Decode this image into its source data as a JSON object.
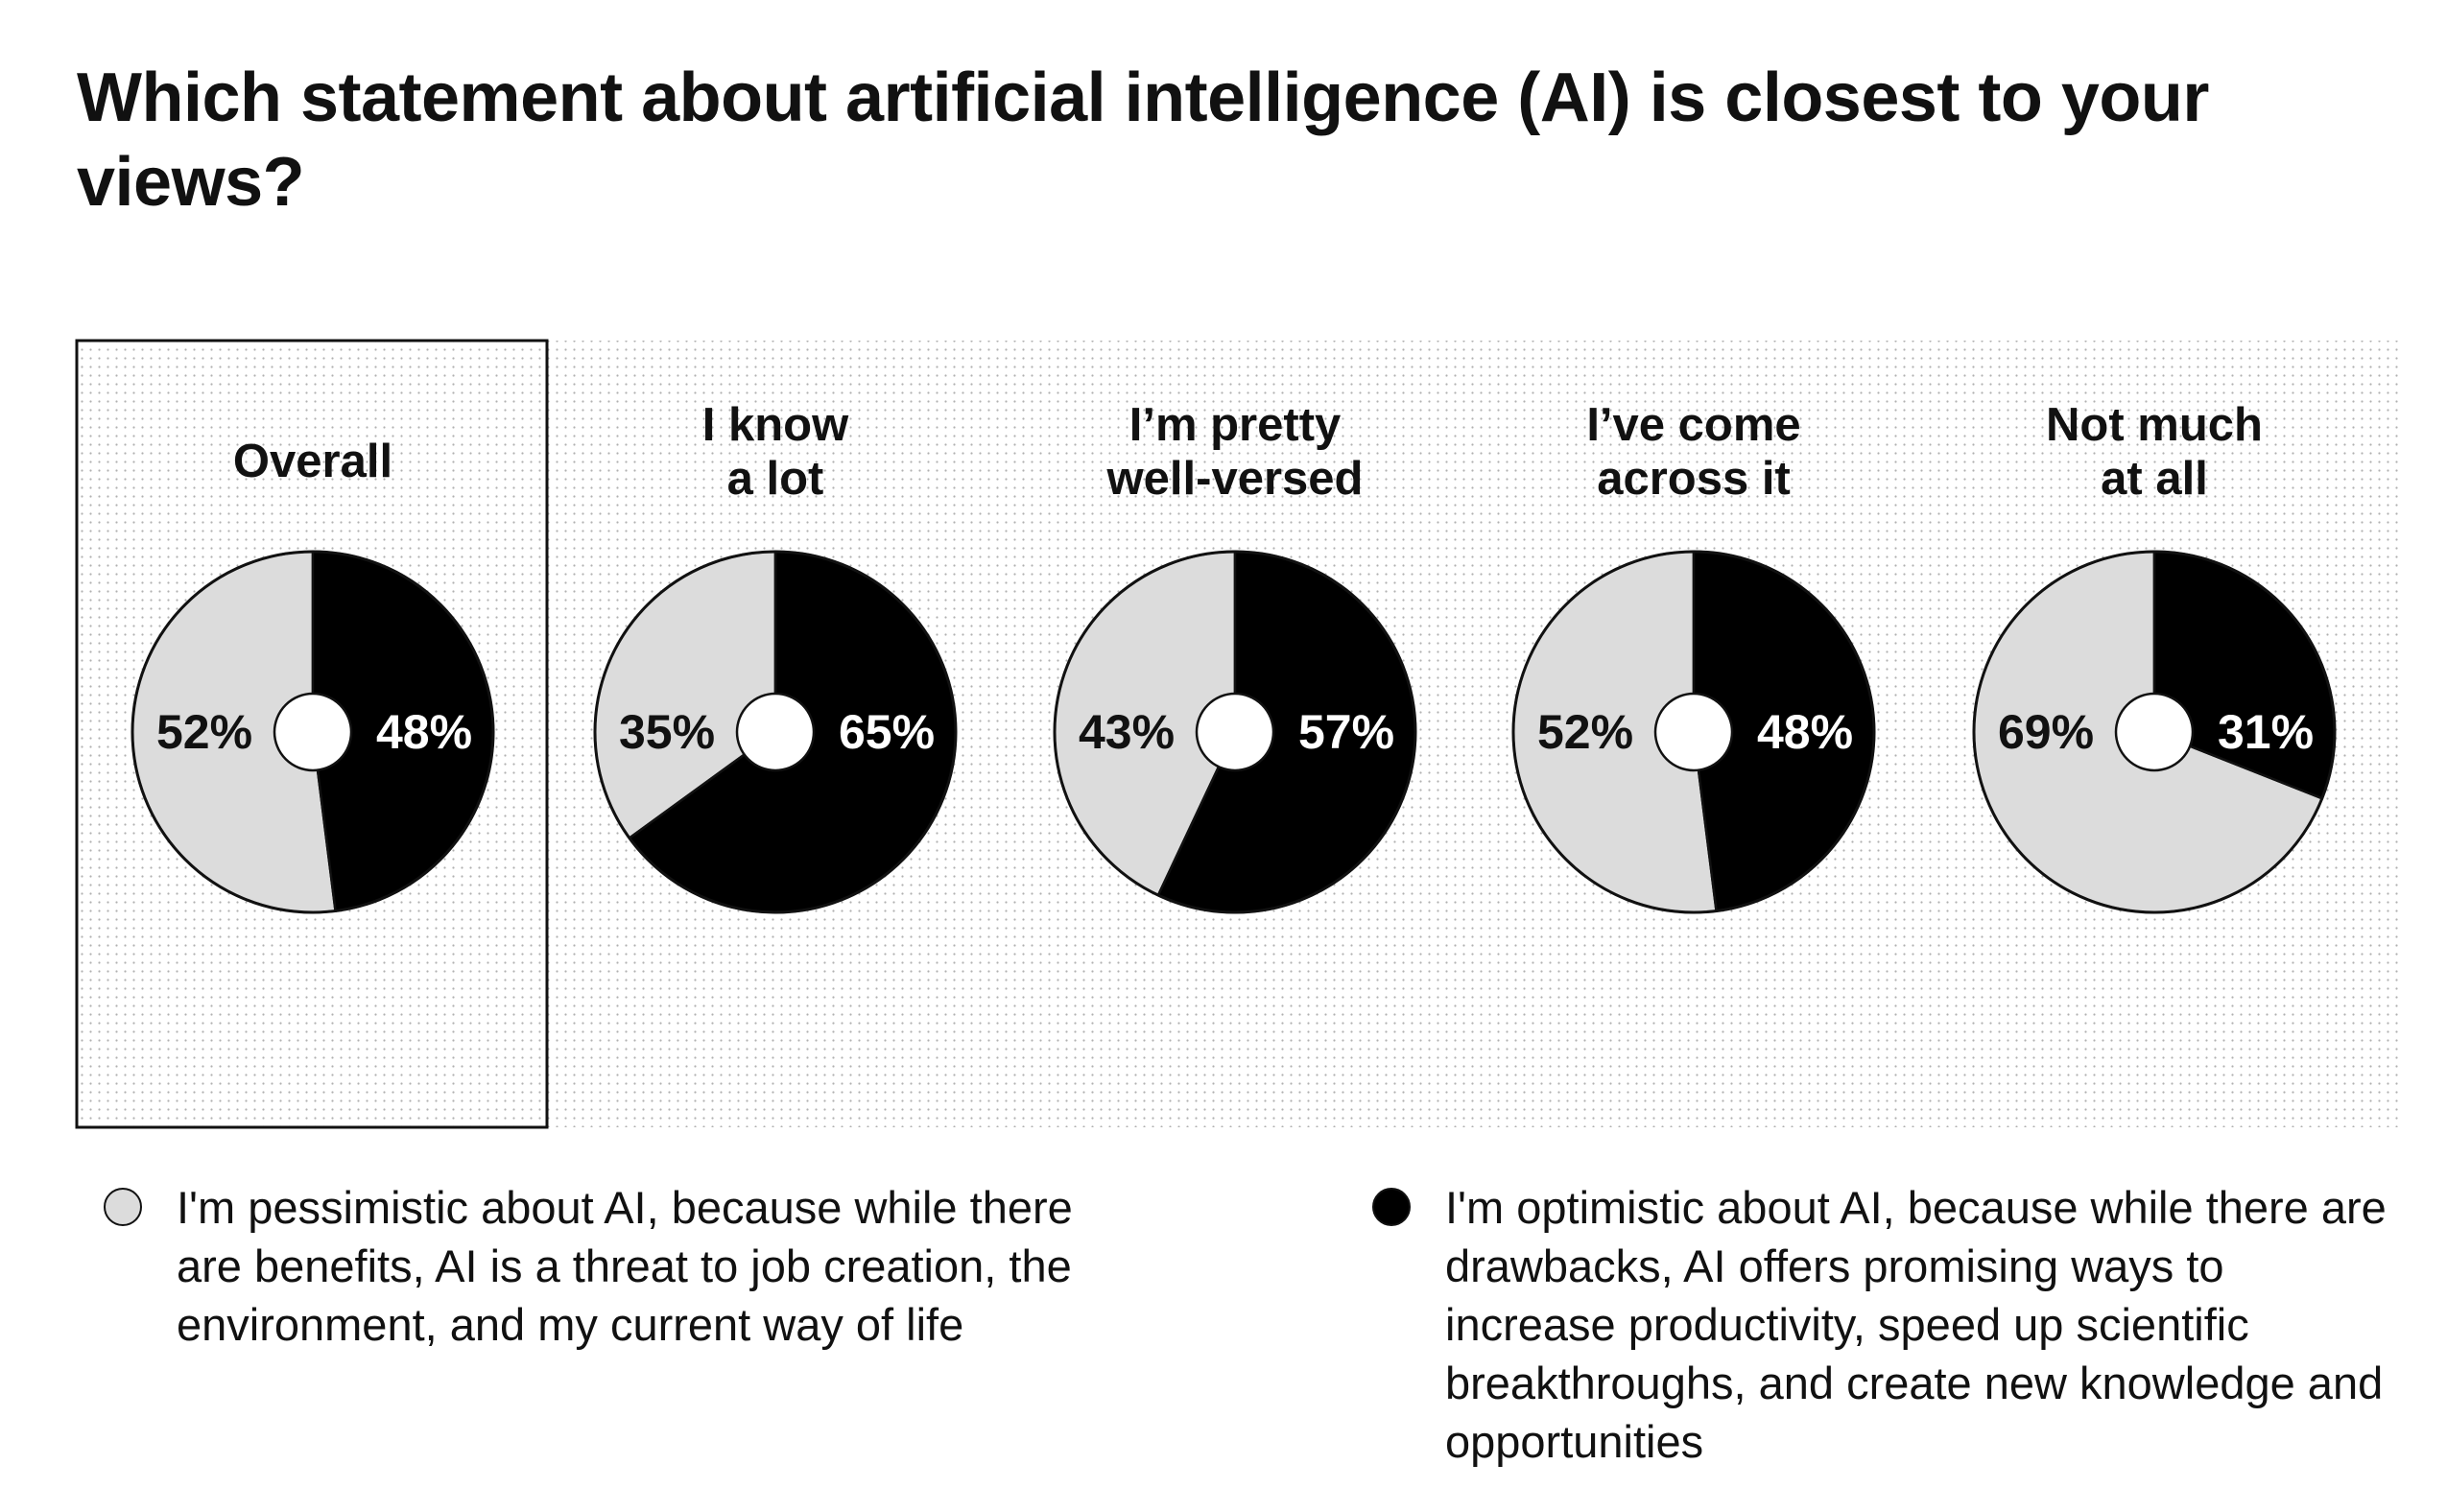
{
  "title": "Which statement about artificial intelligence (AI) is closest to your views?",
  "colors": {
    "pessimistic": "#dcdcdc",
    "optimistic": "#000000",
    "outline": "#111111",
    "background_dots": "#b0b0b0"
  },
  "chart_data": {
    "type": "pie",
    "title": "Which statement about artificial intelligence (AI) is closest to your views?",
    "categories": [
      "Overall",
      "I know a lot",
      "I'm pretty well-versed",
      "I've come across it",
      "Not much at all"
    ],
    "category_lines": [
      [
        "Overall"
      ],
      [
        "I know",
        "a lot"
      ],
      [
        "I’m pretty",
        "well-versed"
      ],
      [
        "I’ve come",
        "across it"
      ],
      [
        "Not much",
        "at all"
      ]
    ],
    "series": [
      {
        "name": "I'm pessimistic about AI, because while there are benefits, AI is a threat to job creation, the environment, and my current way of life",
        "values": [
          52,
          35,
          43,
          52,
          69
        ],
        "labels": [
          "52%",
          "35%",
          "43%",
          "52%",
          "69%"
        ]
      },
      {
        "name": "I'm optimistic about AI, because while there are drawbacks, AI offers promising ways to increase productivity, speed up scientific breakthroughs, and create new knowledge and opportunities",
        "values": [
          48,
          65,
          57,
          48,
          31
        ],
        "labels": [
          "48%",
          "65%",
          "57%",
          "48%",
          "31%"
        ]
      }
    ],
    "highlighted_category": "Overall"
  },
  "legend": {
    "pessimistic": {
      "icon": "light-circle-icon",
      "text": "I'm pessimistic about AI, because while there are benefits, AI is a threat to job creation, the environment, and my current way of life"
    },
    "optimistic": {
      "icon": "dark-circle-icon",
      "text": "I'm optimistic about AI, because while there are drawbacks, AI offers promising ways to increase productivity, speed up scientific breakthroughs, and create new knowledge and opportunities"
    }
  }
}
